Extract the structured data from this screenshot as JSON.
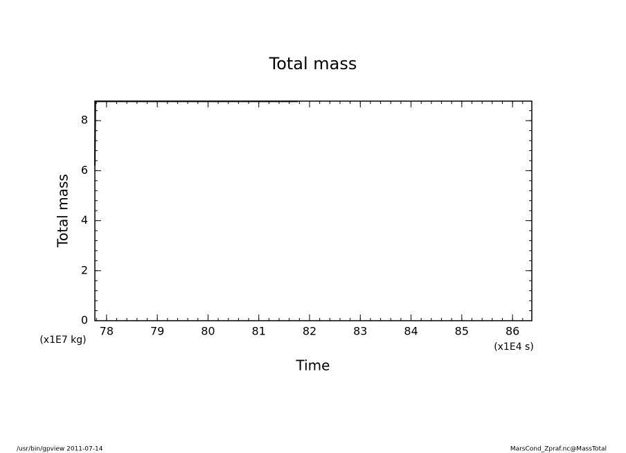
{
  "chart_data": {
    "type": "line",
    "title": "Total mass",
    "x_label": "Time",
    "y_label": "Total mass",
    "x_units": "(x1E4 s)",
    "y_units": "(x1E7 kg)",
    "footer_left": "/usr/bin/gpview  2011-07-14",
    "footer_right": "MarsCond_Zpraf.nc@MassTotal",
    "x": [
      77.77,
      77.78,
      81.77
    ],
    "series": [
      {
        "name": "Total mass",
        "color": "#000000",
        "values": [
          6.2,
          8.77,
          8.77
        ]
      }
    ],
    "xlim": [
      77.77,
      86.38
    ],
    "xticks": [
      78,
      79,
      80,
      81,
      82,
      83,
      84,
      85,
      86
    ],
    "x_minor_step": 0.2,
    "ylim": [
      0,
      8.78
    ],
    "yticks": [
      0,
      2,
      4,
      6,
      8
    ],
    "y_minor_step": 0.4,
    "grid": false
  }
}
